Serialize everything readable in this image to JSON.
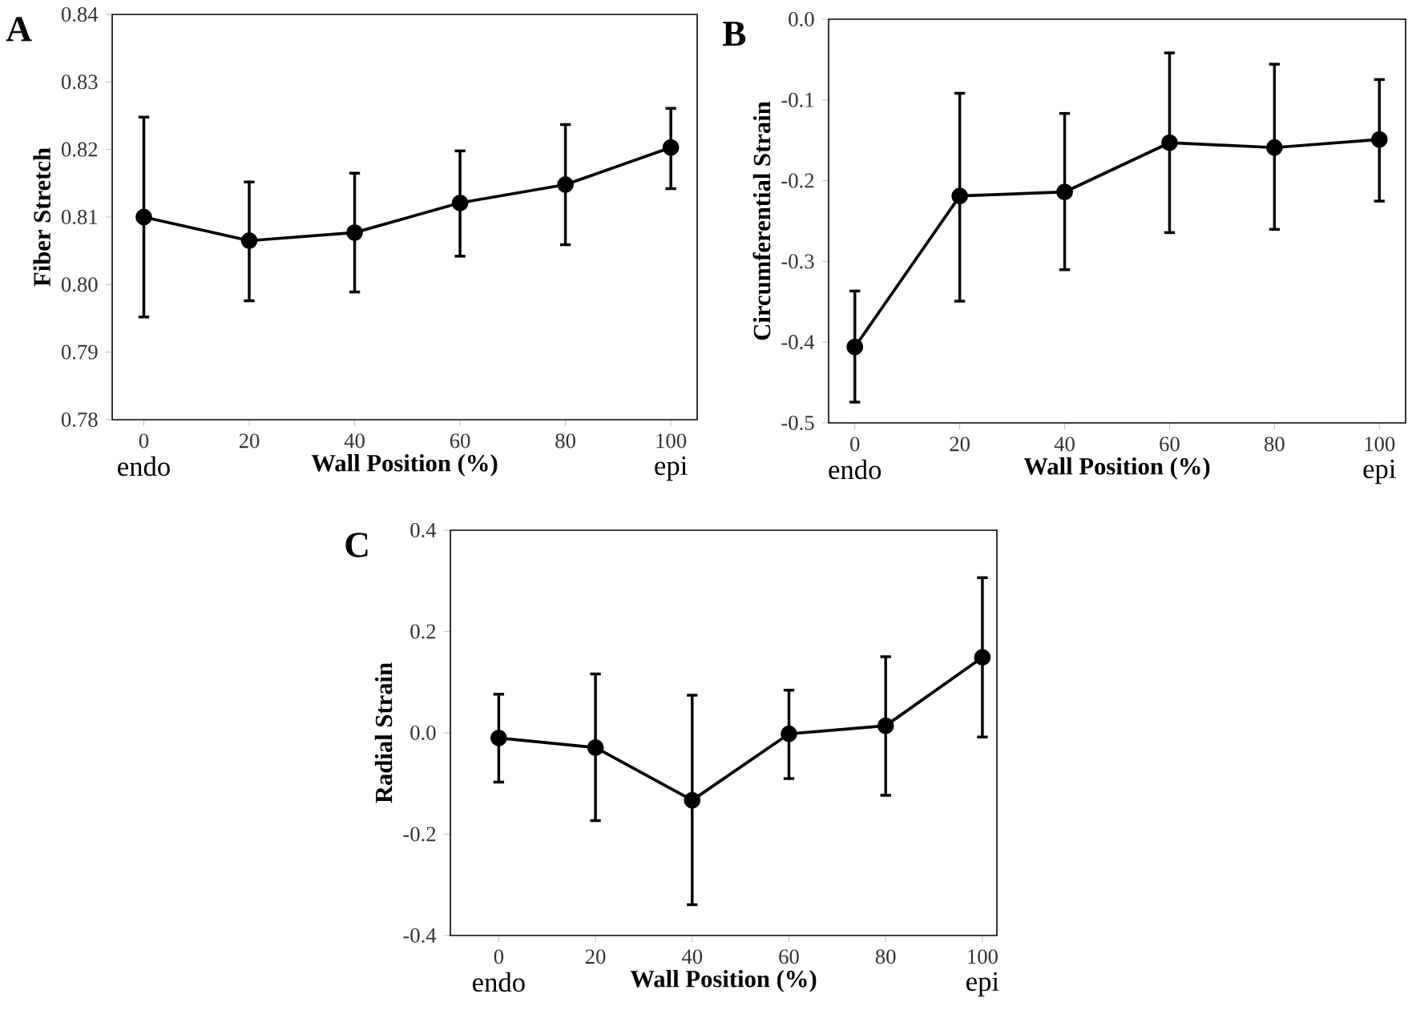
{
  "chart_data": [
    {
      "type": "line",
      "title": "A",
      "xlabel": "Wall Position (%)",
      "ylabel": "Fiber Stretch",
      "color": "#000000",
      "marker": "circle",
      "line_style": "solid",
      "x": [
        0,
        20,
        40,
        60,
        80,
        100
      ],
      "values": [
        0.81,
        0.8065,
        0.8077,
        0.8121,
        0.8148,
        0.8203
      ],
      "errors": [
        [
          0.795,
          0.825
        ],
        [
          0.7974,
          0.8154
        ],
        [
          0.7987,
          0.8167
        ],
        [
          0.804,
          0.82
        ],
        [
          0.8057,
          0.8239
        ],
        [
          0.814,
          0.8263
        ]
      ],
      "xlim": [
        -6,
        105
      ],
      "ylim": [
        0.78,
        0.84
      ],
      "xticks": [
        0,
        20,
        40,
        60,
        80,
        100
      ],
      "yticks": [
        {
          "value": 0.78,
          "label": "0.78"
        },
        {
          "value": 0.79,
          "label": "0.79"
        },
        {
          "value": 0.8,
          "label": "0.80"
        },
        {
          "value": 0.81,
          "label": "0.81"
        },
        {
          "value": 0.82,
          "label": "0.82"
        },
        {
          "value": 0.83,
          "label": "0.83"
        },
        {
          "value": 0.84,
          "label": "0.84"
        }
      ],
      "annotations": [
        "endo",
        "epi"
      ]
    },
    {
      "type": "line",
      "title": "B",
      "xlabel": "Wall Position (%)",
      "ylabel": "Circumferential Strain",
      "color": "#000000",
      "marker": "circle",
      "line_style": "solid",
      "x": [
        0,
        20,
        40,
        60,
        80,
        100
      ],
      "values": [
        -0.406,
        -0.219,
        -0.214,
        -0.153,
        -0.159,
        -0.149
      ],
      "errors": [
        [
          -0.476,
          -0.335
        ],
        [
          -0.351,
          -0.09
        ],
        [
          -0.312,
          -0.115
        ],
        [
          -0.266,
          -0.04
        ],
        [
          -0.262,
          -0.054
        ],
        [
          -0.227,
          -0.073
        ]
      ],
      "xlim": [
        -5,
        105
      ],
      "ylim": [
        -0.5,
        0
      ],
      "xticks": [
        0,
        20,
        40,
        60,
        80,
        100
      ],
      "yticks": [
        -0.5,
        -0.4,
        -0.3,
        -0.2,
        -0.1,
        {
          "value": 0,
          "label": "0.0"
        }
      ],
      "annotations": [
        "endo",
        "epi"
      ]
    },
    {
      "type": "line",
      "title": "C",
      "xlabel": "Wall Position (%)",
      "ylabel": "Radial Strain",
      "color": "#000000",
      "marker": "circle",
      "line_style": "solid",
      "x": [
        0,
        20,
        40,
        60,
        80,
        100
      ],
      "values": [
        -0.01,
        -0.029,
        -0.133,
        -0.002,
        0.014,
        0.149
      ],
      "errors": [
        [
          -0.1,
          0.079
        ],
        [
          -0.176,
          0.119
        ],
        [
          -0.342,
          0.077
        ],
        [
          -0.093,
          0.087
        ],
        [
          -0.126,
          0.153
        ],
        [
          -0.011,
          0.309
        ]
      ],
      "xlim": [
        -10,
        103
      ],
      "ylim": [
        -0.4,
        0.4
      ],
      "xticks": [
        0,
        20,
        40,
        60,
        80,
        100
      ],
      "yticks": [
        -0.4,
        -0.2,
        {
          "value": 0,
          "label": "0.0"
        },
        0.2,
        0.4
      ],
      "annotations": [
        "endo",
        "epi"
      ]
    }
  ]
}
